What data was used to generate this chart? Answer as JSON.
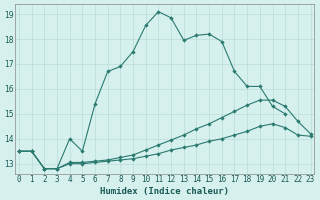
{
  "xlabel": "Humidex (Indice chaleur)",
  "ylabel": "",
  "background_color": "#d6f0ee",
  "grid_color": "#b8ddd9",
  "line_color": "#2a7a70",
  "x_min": 0,
  "x_max": 23,
  "y_min": 12.6,
  "y_max": 19.4,
  "line1_x": [
    0,
    1,
    2,
    3,
    4,
    5,
    6,
    7,
    8,
    9,
    10,
    11,
    12,
    13,
    14,
    15,
    16,
    17,
    18,
    19,
    20,
    21
  ],
  "line1_y": [
    13.5,
    13.5,
    12.8,
    12.8,
    14.0,
    13.5,
    15.4,
    16.7,
    16.9,
    17.5,
    18.55,
    19.1,
    18.85,
    17.95,
    18.15,
    18.2,
    17.9,
    16.7,
    16.1,
    16.1,
    15.3,
    15.0
  ],
  "line2_x": [
    0,
    1,
    2,
    3,
    4,
    5,
    6,
    7,
    8,
    9,
    10,
    11,
    12,
    13,
    14,
    15,
    16,
    17,
    18,
    19,
    20,
    21,
    22,
    23
  ],
  "line2_y": [
    13.5,
    13.5,
    12.8,
    12.8,
    13.05,
    13.05,
    13.1,
    13.15,
    13.25,
    13.35,
    13.55,
    13.75,
    13.95,
    14.15,
    14.4,
    14.6,
    14.85,
    15.1,
    15.35,
    15.55,
    15.55,
    15.3,
    14.7,
    14.2
  ],
  "line3_x": [
    0,
    1,
    2,
    3,
    4,
    5,
    6,
    7,
    8,
    9,
    10,
    11,
    12,
    13,
    14,
    15,
    16,
    17,
    18,
    19,
    20,
    21,
    22,
    23
  ],
  "line3_y": [
    13.5,
    13.5,
    12.8,
    12.8,
    13.0,
    13.0,
    13.05,
    13.1,
    13.15,
    13.2,
    13.3,
    13.4,
    13.55,
    13.65,
    13.75,
    13.9,
    14.0,
    14.15,
    14.3,
    14.5,
    14.6,
    14.45,
    14.15,
    14.1
  ],
  "xtick_labels": [
    "0",
    "1",
    "2",
    "3",
    "4",
    "5",
    "6",
    "7",
    "8",
    "9",
    "10",
    "11",
    "12",
    "13",
    "14",
    "15",
    "16",
    "17",
    "18",
    "19",
    "20",
    "21",
    "22",
    "23"
  ],
  "ytick_values": [
    13,
    14,
    15,
    16,
    17,
    18,
    19
  ],
  "tick_fontsize": 5.5,
  "label_fontsize": 6.5
}
